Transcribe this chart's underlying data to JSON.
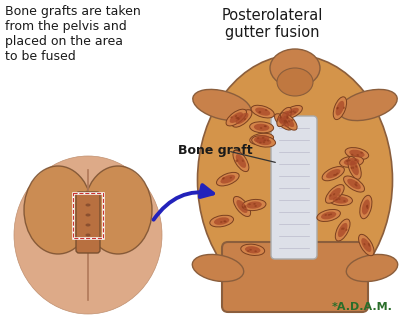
{
  "title": "Posterolateral\ngutter fusion",
  "label_bone_graft": "Bone graft",
  "label_description": "Bone grafts are taken\nfrom the pelvis and\nplaced on the area\nto be fused",
  "bg_color": "#ffffff",
  "title_color": "#1a1a1a",
  "label_color": "#1a1a1a",
  "arrow_color": "#2222bb",
  "title_fontsize": 10.5,
  "label_fontsize": 9,
  "desc_fontsize": 9,
  "spine_color": "#C8814A",
  "spine_dark": "#8B5E3C",
  "bone_graft_outer": "#D4944A",
  "bone_graft_inner": "#B05838",
  "canal_color": "#dde0e8",
  "canal_edge": "#aaaaaa",
  "skin_color": "#e8c4a0",
  "line_color": "#333333",
  "adam_color": "#2a6e2a",
  "adam_text": "*A.D.A.M.",
  "adam_fontsize": 8
}
